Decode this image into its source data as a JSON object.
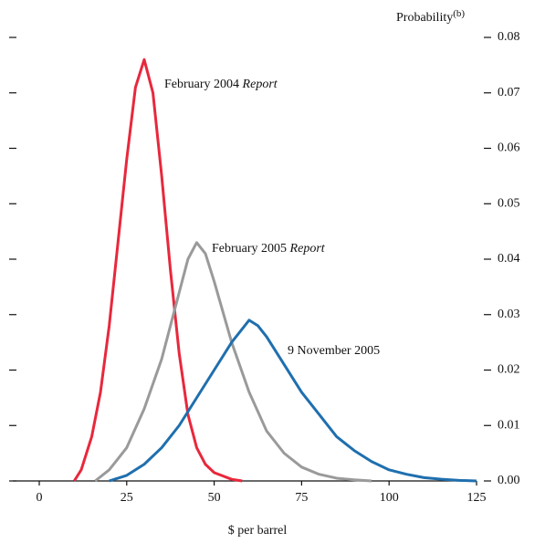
{
  "chart_data": {
    "type": "line",
    "y_label": "Probability",
    "y_label_note": "(b)",
    "x_label": "$ per barrel",
    "xlim": [
      0,
      125
    ],
    "xticks": [
      0,
      25,
      50,
      75,
      100,
      125
    ],
    "ylim": [
      0,
      0.08
    ],
    "yticks": [
      {
        "value": 0,
        "label": "0.00"
      },
      0.01,
      0.02,
      0.03,
      0.04,
      0.05,
      0.06,
      0.07,
      0.08
    ],
    "series": [
      {
        "label": "February 2004",
        "label_italic": "Report",
        "color": "#e8283c",
        "x": [
          10,
          12,
          15,
          17.5,
          20,
          22.5,
          25,
          27.5,
          30,
          32.5,
          35,
          37.5,
          40,
          42.5,
          45,
          47.5,
          50,
          55,
          58
        ],
        "values": [
          0,
          0.002,
          0.008,
          0.016,
          0.028,
          0.043,
          0.058,
          0.071,
          0.076,
          0.07,
          0.055,
          0.038,
          0.023,
          0.012,
          0.006,
          0.003,
          0.0015,
          0.0003,
          0
        ]
      },
      {
        "label": "February 2005",
        "label_italic": "Report",
        "color": "#9a9a9a",
        "x": [
          16,
          20,
          25,
          30,
          35,
          40,
          42.5,
          45,
          47.5,
          50,
          55,
          60,
          65,
          70,
          75,
          80,
          85,
          90,
          95
        ],
        "values": [
          0,
          0.002,
          0.006,
          0.013,
          0.022,
          0.034,
          0.04,
          0.043,
          0.041,
          0.036,
          0.025,
          0.016,
          0.009,
          0.005,
          0.0025,
          0.0012,
          0.0005,
          0.0002,
          0
        ]
      },
      {
        "label": "9 November 2005",
        "color": "#1f6fae",
        "x": [
          20,
          25,
          30,
          35,
          40,
          45,
          50,
          55,
          60,
          62.5,
          65,
          70,
          75,
          80,
          85,
          90,
          95,
          100,
          105,
          110,
          115,
          120,
          125
        ],
        "values": [
          0,
          0.001,
          0.003,
          0.006,
          0.01,
          0.015,
          0.02,
          0.025,
          0.029,
          0.028,
          0.026,
          0.021,
          0.016,
          0.012,
          0.008,
          0.0055,
          0.0035,
          0.002,
          0.0012,
          0.0006,
          0.0003,
          0.0001,
          0
        ]
      }
    ]
  }
}
